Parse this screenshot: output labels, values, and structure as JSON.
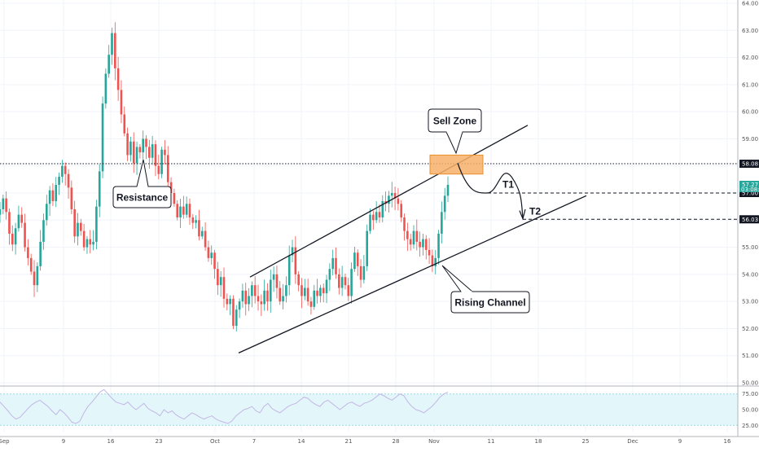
{
  "chart_data": {
    "type": "candlestick",
    "y_axis": {
      "ticks": [
        "64.00",
        "63.00",
        "62.00",
        "61.00",
        "60.00",
        "59.00",
        "58.00",
        "57.00",
        "56.00",
        "55.00",
        "54.00",
        "53.00",
        "52.00",
        "51.00",
        "50.00"
      ],
      "range": [
        50,
        64
      ]
    },
    "x_axis": {
      "labels": [
        "Sep",
        "9",
        "16",
        "23",
        "Oct",
        "7",
        "14",
        "21",
        "28",
        "Nov",
        "11",
        "18",
        "25",
        "Dec",
        "9",
        "16"
      ]
    },
    "rsi": {
      "ticks": [
        "75.00",
        "50.00",
        "25.00"
      ],
      "range": [
        15,
        85
      ],
      "upper_band": 75,
      "lower_band": 25,
      "values": [
        62,
        55,
        48,
        40,
        35,
        38,
        45,
        52,
        58,
        62,
        65,
        60,
        55,
        48,
        42,
        50,
        45,
        38,
        30,
        28,
        32,
        45,
        55,
        62,
        70,
        78,
        82,
        75,
        68,
        62,
        60,
        58,
        62,
        55,
        50,
        55,
        60,
        52,
        48,
        45,
        40,
        50,
        45,
        48,
        42,
        38,
        35,
        40,
        45,
        42,
        38,
        35,
        38,
        40,
        35,
        32,
        30,
        28,
        32,
        40,
        45,
        50,
        52,
        55,
        48,
        45,
        55,
        60,
        52,
        48,
        45,
        50,
        55,
        58,
        60,
        65,
        70,
        68,
        62,
        58,
        55,
        62,
        65,
        60,
        55,
        50,
        55,
        60,
        62,
        58,
        55,
        60,
        62,
        65,
        70,
        75,
        72,
        68,
        65,
        70,
        75,
        72,
        62,
        55,
        50,
        48,
        45,
        50,
        55,
        62,
        70,
        75,
        78
      ]
    },
    "price": {
      "x_start": 0,
      "x_end": 550,
      "closes": [
        56.4,
        56.8,
        56.3,
        55.5,
        55.1,
        55.7,
        56.2,
        55.9,
        55.0,
        54.6,
        54.1,
        53.6,
        54.3,
        55.2,
        56.0,
        56.6,
        57.1,
        56.7,
        57.3,
        57.6,
        58.0,
        57.7,
        57.2,
        56.4,
        55.4,
        55.9,
        55.6,
        55.0,
        55.3,
        55.1,
        55.2,
        56.5,
        57.8,
        60.3,
        61.4,
        62.1,
        62.9,
        61.6,
        60.8,
        59.9,
        59.2,
        58.4,
        58.9,
        58.1,
        58.7,
        58.5,
        59.0,
        58.7,
        58.3,
        58.8,
        58.0,
        57.7,
        58.6,
        58.4,
        57.4,
        57.0,
        56.6,
        56.1,
        56.5,
        56.2,
        56.6,
        56.1,
        55.9,
        56.0,
        55.4,
        55.6,
        55.0,
        54.6,
        54.8,
        54.2,
        53.6,
        53.9,
        53.1,
        52.9,
        53.1,
        52.1,
        52.7,
        53.0,
        53.4,
        52.9,
        53.2,
        53.6,
        53.2,
        53.0,
        52.9,
        53.4,
        53.0,
        53.8,
        54.0,
        53.5,
        53.0,
        53.2,
        53.6,
        54.7,
        55.0,
        54.0,
        53.6,
        53.2,
        53.5,
        53.0,
        52.8,
        53.4,
        53.2,
        53.5,
        53.3,
        53.8,
        54.2,
        54.6,
        54.0,
        53.5,
        53.9,
        53.6,
        53.2,
        54.2,
        54.8,
        54.3,
        53.8,
        54.3,
        55.6,
        56.2,
        56.0,
        56.3,
        56.1,
        56.7,
        56.6,
        56.9,
        57.0,
        56.8,
        56.6,
        56.1,
        55.6,
        55.3,
        55.1,
        55.6,
        55.2,
        55.0,
        55.3,
        54.9,
        54.7,
        54.3,
        54.6,
        55.5,
        56.3,
        56.9,
        57.3
      ]
    },
    "horizontal_levels": [
      {
        "value": 58.08,
        "label": "58.08",
        "style": "dotted"
      },
      {
        "value": 57.0,
        "label": "57.00",
        "style": "dashed"
      },
      {
        "value": 56.03,
        "label": "56.03",
        "style": "dashed"
      }
    ],
    "current_price": {
      "label": "57.27",
      "countdown": "03:08:07"
    },
    "annotations": {
      "resistance": "Resistance",
      "sell_zone": "Sell Zone",
      "rising_channel": "Rising Channel",
      "t1": "T1",
      "t2": "T2"
    },
    "colors": {
      "up": "#26a69a",
      "down": "#ef5350",
      "sell_zone_fill": "#f7b06a",
      "sell_zone_stroke": "#e8902c",
      "rsi_line": "#c4b5e6",
      "rsi_band": "#e3f7fb",
      "price_badge": "#26a69a"
    }
  }
}
